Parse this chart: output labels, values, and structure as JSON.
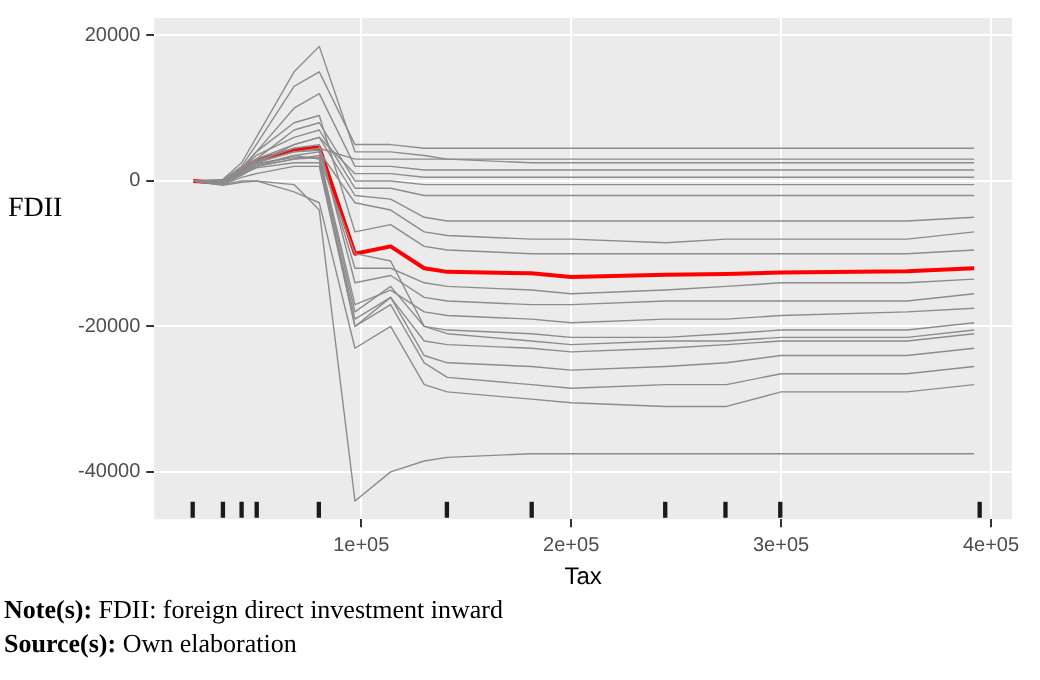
{
  "chart_data": {
    "type": "line",
    "xlabel": "Tax",
    "ylabel": "FDII",
    "x": [
      20000,
      34000,
      43000,
      50000,
      68000,
      80000,
      97000,
      114000,
      130000,
      141000,
      181000,
      200000,
      245000,
      274000,
      300000,
      360000,
      392000
    ],
    "xlim": [
      1400,
      410000
    ],
    "xticks": [
      {
        "value": 100000,
        "label": "1e+05"
      },
      {
        "value": 200000,
        "label": "2e+05"
      },
      {
        "value": 300000,
        "label": "3e+05"
      },
      {
        "value": 400000,
        "label": "4e+05"
      }
    ],
    "ylim": [
      -46500,
      22400
    ],
    "yticks": [
      -40000,
      -20000,
      0,
      20000
    ],
    "grid": true,
    "series": [
      {
        "color": "#8c8c8c",
        "values": [
          0,
          200,
          2500,
          6000,
          15000,
          18500,
          4000,
          4000,
          3500,
          3000,
          2500,
          2500,
          2500,
          2500,
          2500,
          2500,
          2500
        ]
      },
      {
        "color": "#8c8c8c",
        "values": [
          0,
          100,
          2000,
          5000,
          13000,
          15000,
          5000,
          5000,
          4500,
          4500,
          4500,
          4500,
          4500,
          4500,
          4500,
          4500,
          4500
        ]
      },
      {
        "color": "#8c8c8c",
        "values": [
          0,
          0,
          1500,
          4000,
          10000,
          12000,
          2000,
          2000,
          1500,
          1500,
          1500,
          1500,
          1500,
          1500,
          1500,
          1500,
          1500
        ]
      },
      {
        "color": "#8c8c8c",
        "values": [
          0,
          -100,
          1000,
          3000,
          7000,
          8000,
          0,
          0,
          -500,
          -500,
          -500,
          -500,
          -500,
          -500,
          -500,
          -500,
          -500
        ]
      },
      {
        "color": "#8c8c8c",
        "values": [
          0,
          -200,
          1000,
          2500,
          5000,
          6000,
          -2000,
          -2500,
          -5000,
          -5500,
          -5500,
          -5500,
          -5500,
          -5500,
          -5500,
          -5500,
          -5000
        ]
      },
      {
        "color": "#8c8c8c",
        "values": [
          0,
          -300,
          1200,
          2500,
          4000,
          4500,
          3000,
          3000,
          3000,
          3000,
          3000,
          3000,
          3000,
          3000,
          3000,
          3000,
          3000
        ]
      },
      {
        "color": "#8c8c8c",
        "values": [
          0,
          -300,
          800,
          2000,
          3500,
          4000,
          -3000,
          -4000,
          -7000,
          -7500,
          -8000,
          -8000,
          -8500,
          -8000,
          -8000,
          -8000,
          -7000
        ]
      },
      {
        "color": "#8c8c8c",
        "values": [
          0,
          -400,
          800,
          2000,
          3000,
          3500,
          -17000,
          -15000,
          -18000,
          -18500,
          -19000,
          -19500,
          -19000,
          -19000,
          -18500,
          -18000,
          -17500
        ]
      },
      {
        "color": "#8c8c8c",
        "values": [
          0,
          -300,
          1000,
          2200,
          3500,
          3000,
          -20000,
          -16000,
          -22000,
          -22500,
          -23000,
          -23500,
          -23000,
          -22500,
          -22000,
          -22000,
          -21000
        ]
      },
      {
        "color": "#8c8c8c",
        "values": [
          0,
          -200,
          1100,
          2400,
          3200,
          3200,
          -18000,
          -14500,
          -20000,
          -20500,
          -21000,
          -21500,
          -21500,
          -21000,
          -20500,
          -20500,
          -19500
        ]
      },
      {
        "color": "#8c8c8c",
        "values": [
          0,
          -200,
          900,
          1800,
          2500,
          2500,
          -19000,
          -16000,
          -24000,
          -25000,
          -25500,
          -26000,
          -25500,
          -25000,
          -24000,
          -24000,
          -23000
        ]
      },
      {
        "color": "#8c8c8c",
        "values": [
          0,
          -500,
          500,
          1000,
          2000,
          2000,
          -20000,
          -17000,
          -25000,
          -27000,
          -28000,
          -28500,
          -28000,
          -28000,
          -26500,
          -26500,
          -25500
        ]
      },
      {
        "color": "#8c8c8c",
        "values": [
          0,
          -500,
          0,
          0,
          -1500,
          -3000,
          -23000,
          -20000,
          -28000,
          -29000,
          -30000,
          -30500,
          -31000,
          -31000,
          -29000,
          -29000,
          -28000
        ]
      },
      {
        "color": "#8c8c8c",
        "values": [
          0,
          -600,
          -200,
          0,
          -500,
          -4000,
          -44000,
          -40000,
          -38500,
          -38000,
          -37500,
          -37500,
          -37500,
          -37500,
          -37500,
          -37500,
          -37500
        ]
      },
      {
        "color": "#8c8c8c",
        "values": [
          0,
          -300,
          1200,
          2600,
          4000,
          4200,
          -12000,
          -12000,
          -14000,
          -14500,
          -15000,
          -15500,
          -15000,
          -14500,
          -14000,
          -14000,
          -13500
        ]
      },
      {
        "color": "#8c8c8c",
        "values": [
          0,
          -200,
          1300,
          2800,
          4500,
          5000,
          -14000,
          -13000,
          -16000,
          -16500,
          -17000,
          -17000,
          -16500,
          -16500,
          -16500,
          -16500,
          -15500
        ]
      },
      {
        "color": "#8c8c8c",
        "values": [
          0,
          -100,
          1500,
          3000,
          5000,
          6000,
          1000,
          1000,
          500,
          500,
          500,
          500,
          500,
          500,
          500,
          500,
          500
        ]
      },
      {
        "color": "#8c8c8c",
        "values": [
          0,
          0,
          1600,
          3500,
          6000,
          7000,
          -1000,
          -1000,
          -2000,
          -2000,
          -2000,
          -2000,
          -2000,
          -2000,
          -2000,
          -2000,
          -2000
        ]
      },
      {
        "color": "#8c8c8c",
        "values": [
          0,
          100,
          1800,
          4000,
          8000,
          9000,
          -7000,
          -6000,
          -9000,
          -9500,
          -10000,
          -10000,
          -10000,
          -10000,
          -10000,
          -10000,
          -9500
        ]
      },
      {
        "color": "#8c8c8c",
        "values": [
          0,
          -300,
          900,
          2000,
          3000,
          3200,
          -10000,
          -11000,
          -20000,
          -21000,
          -22000,
          -22500,
          -22000,
          -22000,
          -21500,
          -21500,
          -20500
        ]
      },
      {
        "color": "#ff0000",
        "values": [
          0,
          -300,
          1500,
          2800,
          4300,
          4600,
          -10000,
          -9000,
          -12000,
          -12500,
          -12700,
          -13200,
          -12900,
          -12800,
          -12600,
          -12400,
          -12000
        ]
      },
      {
        "type": "bar",
        "color": "#1a1a1a",
        "x": [
          19700,
          34100,
          43000,
          50200,
          79800,
          140800,
          181200,
          244800,
          273500,
          299600,
          394600
        ],
        "base": [
          -46200,
          -46200,
          -46200,
          -46200,
          -46200,
          -46200,
          -46200,
          -46200,
          -46200,
          -46200,
          -46200
        ],
        "values": [
          2000,
          2000,
          2000,
          2000,
          2000,
          2000,
          2000,
          2000,
          2000,
          2000,
          2000
        ]
      }
    ],
    "annotations": [
      "Note(s): FDII: foreign direct investment inward",
      "Source(s): Own elaboration"
    ]
  }
}
